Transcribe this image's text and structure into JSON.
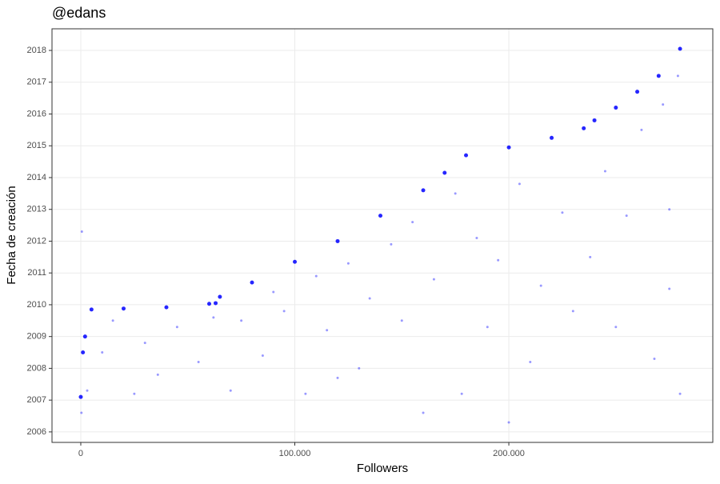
{
  "chart_data": {
    "type": "scatter",
    "title": "@edans",
    "xlabel": "Followers",
    "ylabel": "Fecha de creación",
    "xlim": [
      -13450,
      295300
    ],
    "ylim": [
      2005.67,
      2018.68
    ],
    "xticks": [
      0,
      {
        "value": 100000,
        "label": "100.000"
      },
      {
        "value": 200000,
        "label": "200.000"
      }
    ],
    "yticks": [
      2006,
      2007,
      2008,
      2009,
      2010,
      2011,
      2012,
      2013,
      2014,
      2015,
      2016,
      2017,
      2018
    ],
    "grid": true,
    "series": [
      {
        "color": "#0000ff",
        "x": [
          0,
          1000,
          2000,
          5000,
          20000,
          40000,
          60000,
          63000,
          65000,
          80000,
          100000,
          120000,
          140000,
          160000,
          170000,
          180000,
          200000,
          220000,
          235000,
          240000,
          250000,
          260000,
          270000,
          280000
        ],
        "y": [
          2007.1,
          2008.5,
          2009,
          2009.85,
          2009.88,
          2009.92,
          2010.03,
          2010.05,
          2010.25,
          2010.7,
          2011.35,
          2012,
          2012.8,
          2013.6,
          2014.15,
          2014.7,
          2014.95,
          2015.25,
          2015.55,
          2015.8,
          2016.2,
          2016.7,
          2017.2,
          2018.05
        ]
      },
      {
        "color": "#0000ff",
        "x": [
          500,
          300,
          3000,
          10000,
          15000,
          25000,
          30000,
          36000,
          45000,
          55000,
          62000,
          70000,
          75000,
          85000,
          90000,
          95000,
          105000,
          110000,
          115000,
          125000,
          130000,
          135000,
          145000,
          150000,
          155000,
          165000,
          175000,
          178000,
          185000,
          190000,
          195000,
          205000,
          210000,
          215000,
          225000,
          230000,
          238000,
          245000,
          250000,
          255000,
          262000,
          268000,
          272000,
          275000,
          279000,
          280000,
          275000,
          200000,
          160000,
          120000
        ],
        "y": [
          2012.3,
          2006.6,
          2007.3,
          2008.5,
          2009.5,
          2007.2,
          2008.8,
          2007.8,
          2009.3,
          2008.2,
          2009.6,
          2007.3,
          2009.5,
          2008.4,
          2010.4,
          2009.8,
          2007.2,
          2010.9,
          2009.2,
          2011.3,
          2008.0,
          2010.2,
          2011.9,
          2009.5,
          2012.6,
          2010.8,
          2013.5,
          2007.2,
          2012.1,
          2009.3,
          2011.4,
          2013.8,
          2008.2,
          2010.6,
          2012.9,
          2009.8,
          2011.5,
          2014.2,
          2009.3,
          2012.8,
          2015.5,
          2008.3,
          2016.3,
          2010.5,
          2017.2,
          2007.2,
          2013.0,
          2006.3,
          2006.6,
          2007.7
        ]
      }
    ]
  }
}
